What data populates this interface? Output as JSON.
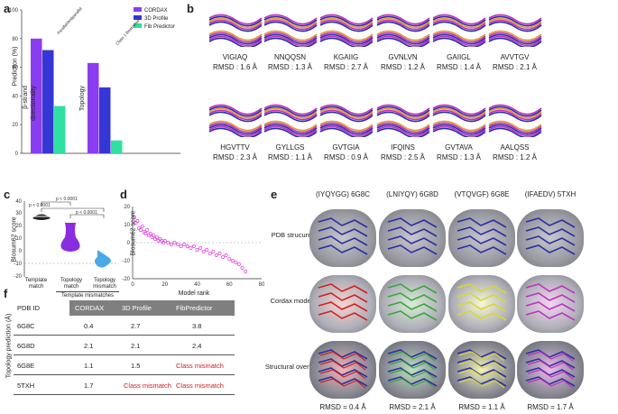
{
  "panel_labels": {
    "a": "a",
    "b": "b",
    "c": "c",
    "d": "d",
    "e": "e",
    "f": "f"
  },
  "panel_a": {
    "ylabel": "Prediction (%)",
    "yticks": [
      "0",
      "20",
      "40",
      "60",
      "80",
      "100"
    ],
    "legend": [
      "CORDAX",
      "3D Profile",
      "Fib Predictor"
    ],
    "annotations": [
      "Parallel/Antiparallel",
      "Class 1 Restricted"
    ]
  },
  "panel_b": {
    "peptides": [
      {
        "seq": "VIGIAQ",
        "rmsd": "RMSD : 1.6 Å"
      },
      {
        "seq": "NNQQSN",
        "rmsd": "RMSD : 1.3 Å"
      },
      {
        "seq": "KGAIIG",
        "rmsd": "RMSD : 2.7 Å"
      },
      {
        "seq": "GVNLVN",
        "rmsd": "RMSD : 1.2 Å"
      },
      {
        "seq": "GAIIGL",
        "rmsd": "RMSD : 1.4 Å"
      },
      {
        "seq": "AVVTGV",
        "rmsd": "RMSD : 2.1 Å"
      },
      {
        "seq": "HGVTTV",
        "rmsd": "RMSD : 2.3 Å"
      },
      {
        "seq": "GYLLGS",
        "rmsd": "RMSD : 1.1 Å"
      },
      {
        "seq": "GVTGIA",
        "rmsd": "RMSD : 0.9 Å"
      },
      {
        "seq": "IFQINS",
        "rmsd": "RMSD : 2.5 Å"
      },
      {
        "seq": "GVTAVA",
        "rmsd": "RMSD : 1.3 Å"
      },
      {
        "seq": "AALQSS",
        "rmsd": "RMSD : 1.2 Å"
      }
    ]
  },
  "panel_c": {
    "ylabel": "Blosum62 score",
    "yticks": [
      "40",
      "30",
      "20",
      "10",
      "0",
      "-10",
      "-20"
    ],
    "pvalues": [
      "p < 0.0001",
      "p < 0.0001",
      "p < 0.0001"
    ],
    "xlabels": [
      "Template match",
      "Topology match",
      "Topology mismatch"
    ],
    "group_label": "Template mismatches"
  },
  "panel_e": {
    "columns": [
      "(IYQYGG) 6G8C",
      "(LNIYQY) 6G8D",
      "(VTQVGF) 6G8E",
      "(IFAEDV) 5TXH"
    ],
    "rows": [
      "PDB strucure",
      "Cordax model",
      "Structural overlay"
    ],
    "rmsd": [
      "RMSD = 0.4 Å",
      "RMSD = 2.1 Å",
      "RMSD = 1.1 Å",
      "RMSD = 1.7 Å"
    ],
    "colors": {
      "pdb": "#2a2ea8",
      "cordax": [
        "#d42020",
        "#3aa63a",
        "#d8d830",
        "#c030c0"
      ]
    }
  },
  "panel_f": {
    "ylabel": "Topology prediction (Å)",
    "headers": [
      "PDB ID",
      "CORDAX",
      "3D Profile",
      "FibPredictor"
    ],
    "rows": [
      [
        "6G8C",
        "0.4",
        "2.7",
        "3.8"
      ],
      [
        "6G8D",
        "2.1",
        "2.1",
        "2.4"
      ],
      [
        "6G8E",
        "1.1",
        "1.5",
        "Class mismatch"
      ],
      [
        "5TXH",
        "1.7",
        "Class mismatch",
        "Class mismatch"
      ]
    ]
  },
  "chart_data": [
    {
      "type": "bar",
      "ylabel": "Prediction (%)",
      "ylim": [
        0,
        100
      ],
      "categories": [
        "β-strand directionality",
        "Topology"
      ],
      "series": [
        {
          "name": "CORDAX",
          "values": [
            80,
            63
          ],
          "color": "#8a3cf0"
        },
        {
          "name": "3D Profile",
          "values": [
            72,
            46
          ],
          "color": "#3636d4"
        },
        {
          "name": "Fib Predictor",
          "values": [
            33,
            9
          ],
          "color": "#30e0a0"
        }
      ]
    },
    {
      "type": "scatter",
      "ylabel": "Blosum62 score",
      "xlabel": "Model rank",
      "ylim": [
        -20,
        20
      ],
      "xlim": [
        0,
        80
      ],
      "xticks": [
        0,
        20,
        40,
        60,
        80
      ],
      "yticks": [
        -20,
        -10,
        0,
        10,
        20
      ],
      "points": [
        [
          1,
          14
        ],
        [
          2,
          11
        ],
        [
          3,
          12
        ],
        [
          4,
          8
        ],
        [
          5,
          7
        ],
        [
          6,
          9
        ],
        [
          7,
          6
        ],
        [
          8,
          5
        ],
        [
          9,
          7
        ],
        [
          10,
          4
        ],
        [
          11,
          5
        ],
        [
          12,
          3
        ],
        [
          13,
          4
        ],
        [
          14,
          2
        ],
        [
          15,
          3
        ],
        [
          16,
          1
        ],
        [
          17,
          2
        ],
        [
          18,
          1
        ],
        [
          19,
          0
        ],
        [
          20,
          1
        ],
        [
          22,
          0
        ],
        [
          24,
          -1
        ],
        [
          26,
          0
        ],
        [
          28,
          -1
        ],
        [
          30,
          -2
        ],
        [
          32,
          -1
        ],
        [
          34,
          -2
        ],
        [
          36,
          -3
        ],
        [
          38,
          -2
        ],
        [
          40,
          -4
        ],
        [
          42,
          -3
        ],
        [
          44,
          -5
        ],
        [
          46,
          -4
        ],
        [
          48,
          -6
        ],
        [
          50,
          -5
        ],
        [
          52,
          -7
        ],
        [
          54,
          -6
        ],
        [
          56,
          -8
        ],
        [
          58,
          -7
        ],
        [
          60,
          -9
        ],
        [
          62,
          -10
        ],
        [
          64,
          -11
        ],
        [
          66,
          -12
        ],
        [
          68,
          -14
        ],
        [
          70,
          -16
        ]
      ]
    }
  ]
}
